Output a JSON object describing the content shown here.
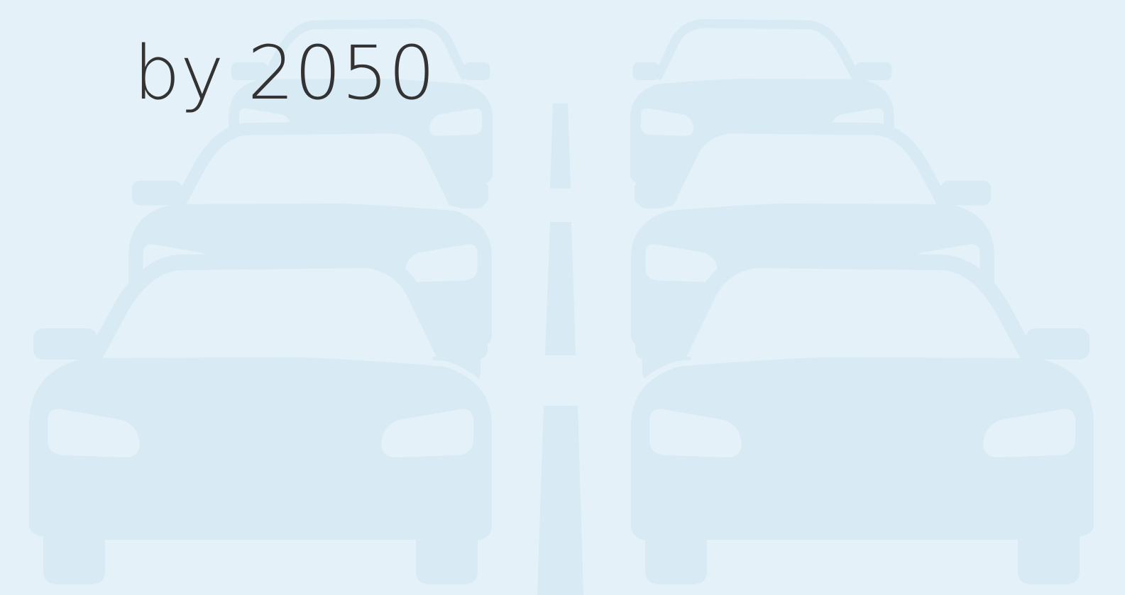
{
  "title": "by 2050"
}
